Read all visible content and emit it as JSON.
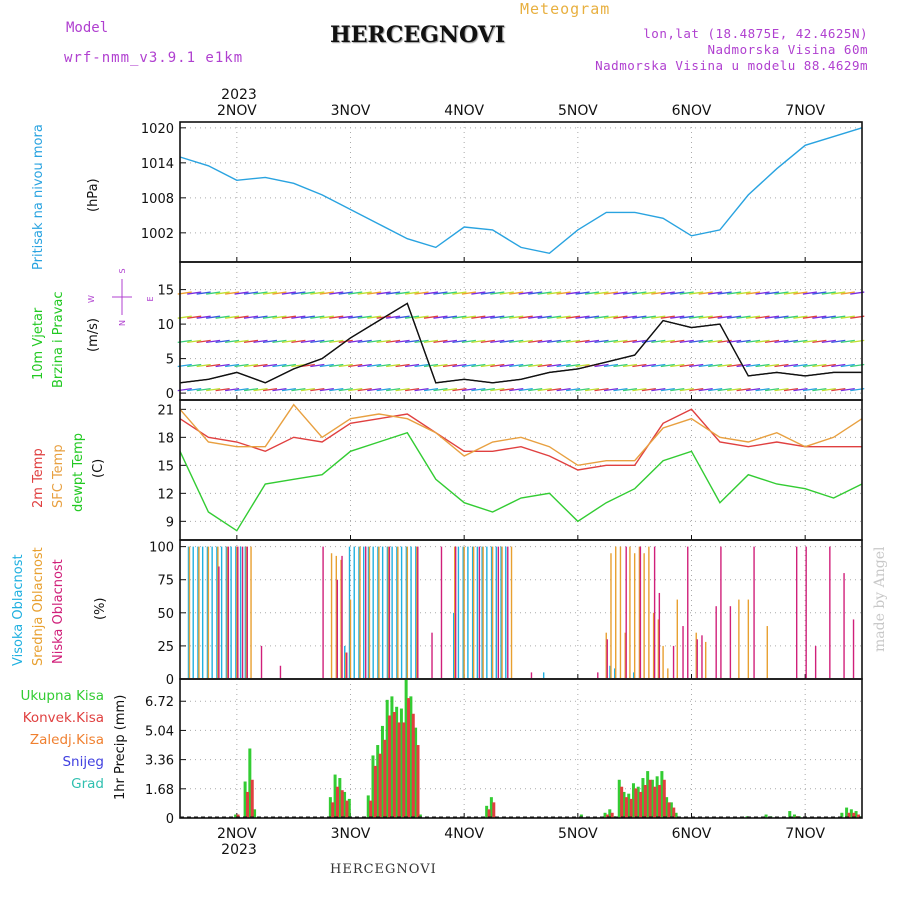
{
  "header": {
    "model_label": "Model",
    "model_name": "wrf-nmm_v3.9.1 e1km",
    "title": "HERCEGNOVI",
    "meteogram": "Meteogram",
    "lonlat": "lon,lat (18.4875E, 42.4625N)",
    "altitude": "Nadmorska Visina 60m",
    "model_altitude": "Nadmorska Visina u modelu 88.4629m"
  },
  "top_axis": {
    "year": "2023",
    "days": [
      "2NOV",
      "3NOV",
      "4NOV",
      "5NOV",
      "6NOV",
      "7NOV"
    ]
  },
  "bottom_axis": {
    "year": "2023",
    "days": [
      "2NOV",
      "3NOV",
      "4NOV",
      "5NOV",
      "6NOV",
      "7NOV"
    ]
  },
  "footer": {
    "location": "HERCEGNOVI",
    "credit": "made by Angel"
  },
  "panels": {
    "pressure": {
      "label1": "Pritisak na nivou mora",
      "unit": "(hPa)"
    },
    "wind": {
      "label1": "10m Vjetar",
      "label2": "Brzina i Pravac",
      "unit": "(m/s)",
      "compass": {
        "n": "N",
        "e": "E",
        "w": "W",
        "s": "S"
      }
    },
    "temp": {
      "label1": "2m Temp",
      "label2": "SFC Temp",
      "label3": "dewpt Temp",
      "unit": "(C)"
    },
    "cloud": {
      "label1": "Visoka Oblacnost",
      "label2": "Srednja Oblacnost",
      "label3": "Niska Oblacnost",
      "unit": "(%)"
    },
    "precip": {
      "unit": "1hr Precip (mm)",
      "legend": [
        {
          "name": "Ukupna Kisa",
          "color": "#33cc33"
        },
        {
          "name": "Konvek.Kisa",
          "color": "#e04040"
        },
        {
          "name": "Zaledj.Kisa",
          "color": "#f08030"
        },
        {
          "name": "Snijeg",
          "color": "#4040e0"
        },
        {
          "name": "Grad",
          "color": "#30c0b0"
        }
      ]
    }
  },
  "colors": {
    "pressure": "#29a3e0",
    "t2m": "#e04040",
    "sfc": "#e8a040",
    "dew": "#33cc33",
    "high_cloud": "#20b0e0",
    "mid_cloud": "#e8a030",
    "low_cloud": "#d0207a",
    "grid": "#aaaaaa",
    "wind_label": "#22c922",
    "wind_label2": "#22c922"
  },
  "chart_data": [
    {
      "type": "line",
      "title": "Pritisak na nivou mora",
      "ylabel": "(hPa)",
      "x_unit": "hours from 2023-11-01 12:00",
      "xlim": [
        0,
        144
      ],
      "ylim": [
        997,
        1021
      ],
      "yticks": [
        1002,
        1008,
        1014,
        1020
      ],
      "grid": true,
      "series": [
        {
          "name": "Pritisak na nivou mora",
          "x": [
            0,
            6,
            12,
            18,
            24,
            30,
            36,
            42,
            48,
            54,
            60,
            66,
            72,
            78,
            84,
            90,
            96,
            102,
            108,
            114,
            120,
            126,
            132,
            138,
            144
          ],
          "values": [
            1015,
            1013.5,
            1011,
            1011.5,
            1010.5,
            1008.5,
            1006,
            1003.5,
            1001,
            999.5,
            1003,
            1002.5,
            999.5,
            998.5,
            1002.5,
            1005.5,
            1005.5,
            1004.5,
            1001.5,
            1002.5,
            1008.5,
            1013,
            1017,
            1018.5,
            1020
          ]
        }
      ]
    },
    {
      "type": "line",
      "title": "10m Vjetar Brzina i Pravac",
      "ylabel": "(m/s)",
      "x_unit": "hours from 2023-11-01 12:00",
      "xlim": [
        0,
        144
      ],
      "ylim": [
        -1,
        19
      ],
      "yticks": [
        0,
        5,
        10,
        15
      ],
      "grid": true,
      "series": [
        {
          "name": "Brzina",
          "x": [
            0,
            6,
            12,
            18,
            24,
            30,
            36,
            42,
            48,
            54,
            60,
            66,
            72,
            78,
            84,
            90,
            96,
            102,
            108,
            114,
            120,
            126,
            132,
            138,
            144
          ],
          "values": [
            1.5,
            2,
            3,
            1.5,
            3.5,
            5,
            8,
            10.5,
            13,
            1.5,
            2,
            1.5,
            2,
            3,
            3.5,
            4.5,
            5.5,
            10.5,
            9.5,
            10,
            2.5,
            3,
            2.5,
            3,
            3
          ]
        }
      ]
    },
    {
      "type": "line",
      "title": "2m Temp / SFC Temp / dewpt Temp",
      "ylabel": "(C)",
      "x_unit": "hours from 2023-11-01 12:00",
      "xlim": [
        0,
        144
      ],
      "ylim": [
        7,
        22
      ],
      "yticks": [
        9,
        12,
        15,
        18,
        21
      ],
      "grid": true,
      "series": [
        {
          "name": "2m Temp",
          "x": [
            0,
            6,
            12,
            18,
            24,
            30,
            36,
            42,
            48,
            54,
            60,
            66,
            72,
            78,
            84,
            90,
            96,
            102,
            108,
            114,
            120,
            126,
            132,
            138,
            144
          ],
          "values": [
            20,
            18,
            17.5,
            16.5,
            18,
            17.5,
            19.5,
            20,
            20.5,
            18.5,
            16.5,
            16.5,
            17,
            16,
            14.5,
            15,
            15,
            19.5,
            21,
            17.5,
            17,
            17.5,
            17,
            17,
            17
          ]
        },
        {
          "name": "SFC Temp",
          "x": [
            0,
            6,
            12,
            18,
            24,
            30,
            36,
            42,
            48,
            54,
            60,
            66,
            72,
            78,
            84,
            90,
            96,
            102,
            108,
            114,
            120,
            126,
            132,
            138,
            144
          ],
          "values": [
            21,
            17.5,
            17,
            17,
            21.5,
            18,
            20,
            20.5,
            20,
            18.5,
            16,
            17.5,
            18,
            17,
            15,
            15.5,
            15.5,
            19,
            20,
            18,
            17.5,
            18.5,
            17,
            18,
            20
          ]
        },
        {
          "name": "dewpt Temp",
          "x": [
            0,
            6,
            12,
            18,
            24,
            30,
            36,
            42,
            48,
            54,
            60,
            66,
            72,
            78,
            84,
            90,
            96,
            102,
            108,
            114,
            120,
            126,
            132,
            138,
            144
          ],
          "values": [
            16.5,
            10,
            8,
            13,
            13.5,
            14,
            16.5,
            17.5,
            18.5,
            13.5,
            11,
            10,
            11.5,
            12,
            9,
            11,
            12.5,
            15.5,
            16.5,
            11,
            14,
            13,
            12.5,
            11.5,
            13
          ]
        }
      ]
    },
    {
      "type": "bar",
      "title": "Visoka / Srednja / Niska Oblacnost",
      "ylabel": "(%)",
      "x_unit": "hours from 2023-11-01 12:00",
      "xlim": [
        0,
        144
      ],
      "ylim": [
        0,
        105
      ],
      "yticks": [
        0,
        25,
        50,
        75,
        100
      ],
      "grid": true,
      "series": [
        {
          "name": "Visoka Oblacnost",
          "x": [
            2,
            3,
            4,
            5,
            6,
            7,
            8,
            9,
            10,
            11,
            12,
            13,
            14,
            35,
            36,
            37,
            38,
            39,
            40,
            41,
            42,
            43,
            44,
            45,
            46,
            47,
            48,
            49,
            50,
            58,
            59,
            60,
            61,
            62,
            63,
            64,
            65,
            66,
            67,
            68,
            69,
            77,
            91,
            92,
            96
          ],
          "values": [
            100,
            100,
            100,
            100,
            100,
            100,
            100,
            100,
            100,
            100,
            100,
            100,
            100,
            25,
            100,
            100,
            100,
            100,
            100,
            100,
            100,
            100,
            100,
            100,
            100,
            100,
            100,
            100,
            100,
            50,
            100,
            100,
            100,
            100,
            100,
            100,
            100,
            100,
            100,
            100,
            100,
            5,
            10,
            8,
            5
          ]
        },
        {
          "name": "Srednja Oblacnost",
          "x": [
            2,
            4,
            6,
            8,
            10,
            12,
            14,
            15,
            32,
            33,
            34,
            35,
            36,
            38,
            40,
            42,
            44,
            46,
            48,
            50,
            58,
            60,
            62,
            64,
            66,
            68,
            70,
            90,
            91,
            92,
            93,
            94,
            95,
            96,
            97,
            98,
            99,
            100,
            101,
            102,
            103,
            105,
            109,
            111,
            118,
            120,
            124
          ],
          "values": [
            100,
            100,
            100,
            100,
            100,
            100,
            100,
            100,
            95,
            93,
            90,
            20,
            60,
            100,
            100,
            100,
            100,
            100,
            100,
            100,
            100,
            100,
            100,
            100,
            100,
            100,
            100,
            35,
            95,
            100,
            100,
            35,
            100,
            95,
            100,
            95,
            100,
            50,
            45,
            25,
            8,
            60,
            35,
            28,
            60,
            60,
            40
          ]
        },
        {
          "name": "Niska Oblacnost",
          "x": [
            8,
            10,
            12,
            13,
            14,
            17,
            21,
            30,
            33,
            34,
            35,
            39,
            44,
            50,
            53,
            55,
            58,
            63,
            67,
            69,
            74,
            88,
            90,
            94,
            97,
            100,
            101,
            104,
            106,
            107,
            109,
            110,
            113,
            114,
            116,
            121,
            130,
            132,
            134,
            137,
            140,
            142
          ],
          "values": [
            85,
            100,
            100,
            100,
            100,
            25,
            10,
            100,
            75,
            93,
            20,
            100,
            100,
            100,
            35,
            100,
            100,
            100,
            100,
            100,
            5,
            5,
            30,
            100,
            100,
            100,
            65,
            25,
            40,
            100,
            30,
            33,
            55,
            100,
            55,
            100,
            100,
            100,
            25,
            100,
            80,
            45
          ]
        }
      ]
    },
    {
      "type": "bar",
      "title": "1hr Precip",
      "ylabel": "1hr Precip (mm)",
      "x_unit": "hours from 2023-11-01 12:00",
      "xlim": [
        0,
        144
      ],
      "ylim": [
        0,
        8
      ],
      "yticks": [
        0,
        1.68,
        3.36,
        5.04,
        6.72
      ],
      "grid": true,
      "series": [
        {
          "name": "Ukupna Kisa",
          "x": [
            12,
            14,
            15,
            16,
            32,
            33,
            34,
            35,
            36,
            40,
            41,
            42,
            43,
            44,
            45,
            46,
            47,
            48,
            49,
            50,
            51,
            65,
            66,
            85,
            90,
            91,
            92,
            93,
            94,
            95,
            96,
            97,
            98,
            99,
            100,
            101,
            102,
            103,
            104,
            105,
            120,
            124,
            125,
            129,
            130,
            131,
            140,
            141,
            142,
            143,
            144
          ],
          "values": [
            0.2,
            2.1,
            4,
            0.5,
            1.2,
            2.5,
            2.3,
            1.5,
            1.1,
            1.3,
            3.6,
            4.2,
            5.3,
            6.8,
            7,
            6.4,
            6.3,
            8,
            7,
            5.2,
            0.2,
            0.7,
            1.2,
            0.2,
            0.3,
            0.5,
            0.1,
            2.2,
            1.5,
            1.4,
            2,
            1.8,
            2.3,
            2.7,
            2.2,
            2.4,
            2.7,
            1.2,
            0.9,
            0.3,
            0.1,
            0.2,
            0.1,
            0.4,
            0.2,
            0.1,
            0.3,
            0.6,
            0.5,
            0.4,
            0.1
          ]
        },
        {
          "name": "Konvek.Kisa",
          "x": [
            12,
            14,
            15,
            32,
            33,
            34,
            35,
            40,
            41,
            42,
            43,
            44,
            45,
            46,
            47,
            48,
            49,
            50,
            65,
            66,
            90,
            91,
            93,
            94,
            95,
            96,
            97,
            98,
            99,
            100,
            101,
            102,
            103,
            104,
            130,
            141,
            142,
            143
          ],
          "values": [
            0.2,
            1.5,
            2.2,
            0.9,
            1.8,
            1.6,
            1,
            1,
            3,
            3.7,
            4.5,
            5.9,
            6.1,
            5.5,
            5.5,
            6.9,
            6,
            4.2,
            0.5,
            0.9,
            0.2,
            0.3,
            1.8,
            1.2,
            1.1,
            1.7,
            1.5,
            1.9,
            2.2,
            1.8,
            1.9,
            2.2,
            0.9,
            0.6,
            0.1,
            0.3,
            0.3,
            0.2
          ]
        }
      ]
    }
  ]
}
